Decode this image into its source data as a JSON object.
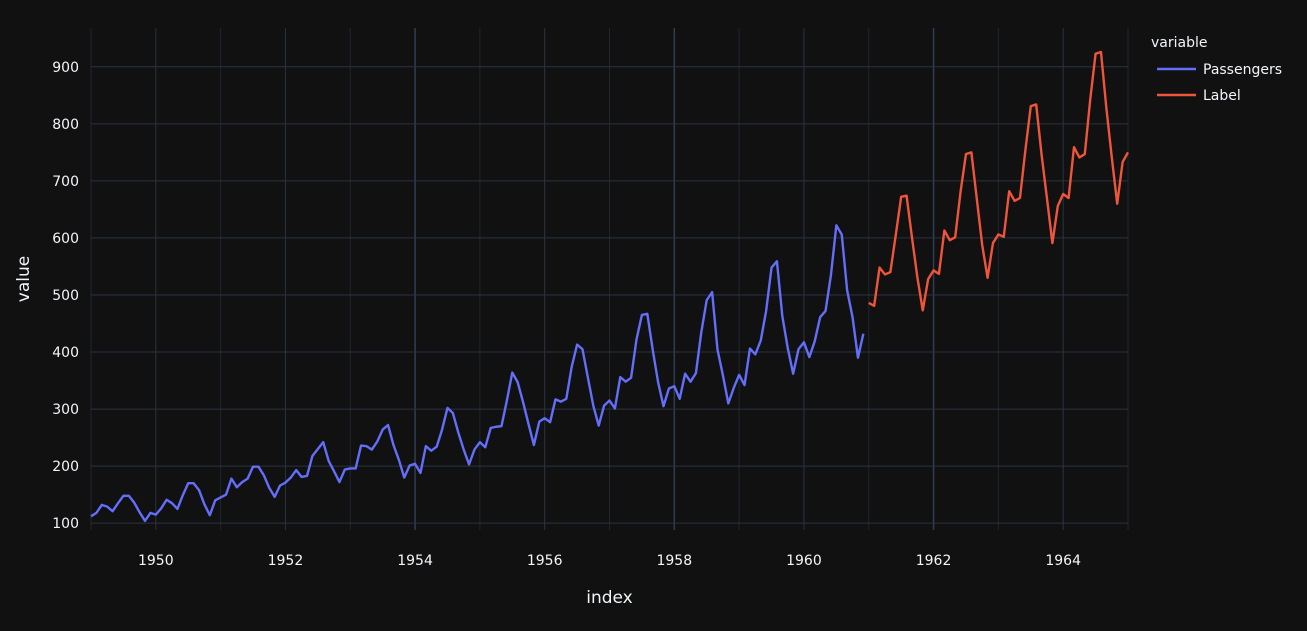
{
  "chart_data": {
    "type": "line",
    "xlabel": "index",
    "ylabel": "value",
    "xlim": [
      1949.0,
      1965.0
    ],
    "ylim": [
      88,
      968
    ],
    "x_ticks": [
      1950,
      1952,
      1954,
      1956,
      1958,
      1960,
      1962,
      1964
    ],
    "x_tick_labels": [
      "1950",
      "1952",
      "1954",
      "1956",
      "1958",
      "1960",
      "1962",
      "1964"
    ],
    "y_ticks": [
      100,
      200,
      300,
      400,
      500,
      600,
      700,
      800,
      900
    ],
    "y_tick_labels": [
      "100",
      "200",
      "300",
      "400",
      "500",
      "600",
      "700",
      "800",
      "900"
    ],
    "grid": true,
    "legend": {
      "title": "variable",
      "position": "top-right"
    },
    "x_start": 1949.0,
    "x_step": 0.0833333,
    "series": [
      {
        "name": "Passengers",
        "color": "#636efa",
        "start_index": 0,
        "values": [
          112,
          118,
          132,
          129,
          121,
          135,
          148,
          148,
          136,
          119,
          104,
          118,
          115,
          126,
          141,
          135,
          125,
          149,
          170,
          170,
          158,
          133,
          114,
          140,
          145,
          150,
          178,
          163,
          172,
          178,
          199,
          199,
          184,
          162,
          146,
          166,
          171,
          180,
          193,
          181,
          183,
          218,
          230,
          242,
          209,
          191,
          172,
          194,
          196,
          196,
          236,
          235,
          229,
          243,
          264,
          272,
          237,
          211,
          180,
          201,
          204,
          188,
          235,
          227,
          234,
          264,
          302,
          293,
          259,
          229,
          203,
          229,
          242,
          233,
          267,
          269,
          270,
          315,
          364,
          347,
          312,
          274,
          237,
          278,
          284,
          277,
          317,
          313,
          318,
          374,
          413,
          405,
          355,
          306,
          271,
          306,
          315,
          301,
          356,
          348,
          355,
          422,
          465,
          467,
          404,
          347,
          305,
          336,
          340,
          318,
          362,
          348,
          363,
          435,
          491,
          505,
          404,
          359,
          310,
          337,
          360,
          342,
          406,
          396,
          420,
          472,
          548,
          559,
          463,
          407,
          362,
          405,
          417,
          391,
          419,
          461,
          472,
          535,
          622,
          606,
          508,
          461,
          390,
          432
        ]
      },
      {
        "name": "Label",
        "color": "#ef553b",
        "start_index": 144,
        "values": [
          486,
          481,
          548,
          536,
          540,
          605,
          672,
          674,
          601,
          531,
          473,
          528,
          543,
          537,
          613,
          596,
          601,
          681,
          747,
          750,
          669,
          588,
          530,
          591,
          606,
          602,
          682,
          665,
          670,
          754,
          831,
          834,
          746,
          669,
          591,
          656,
          677,
          670,
          759,
          741,
          747,
          842,
          923,
          926,
          827,
          741,
          660,
          733,
          750
        ]
      }
    ]
  }
}
